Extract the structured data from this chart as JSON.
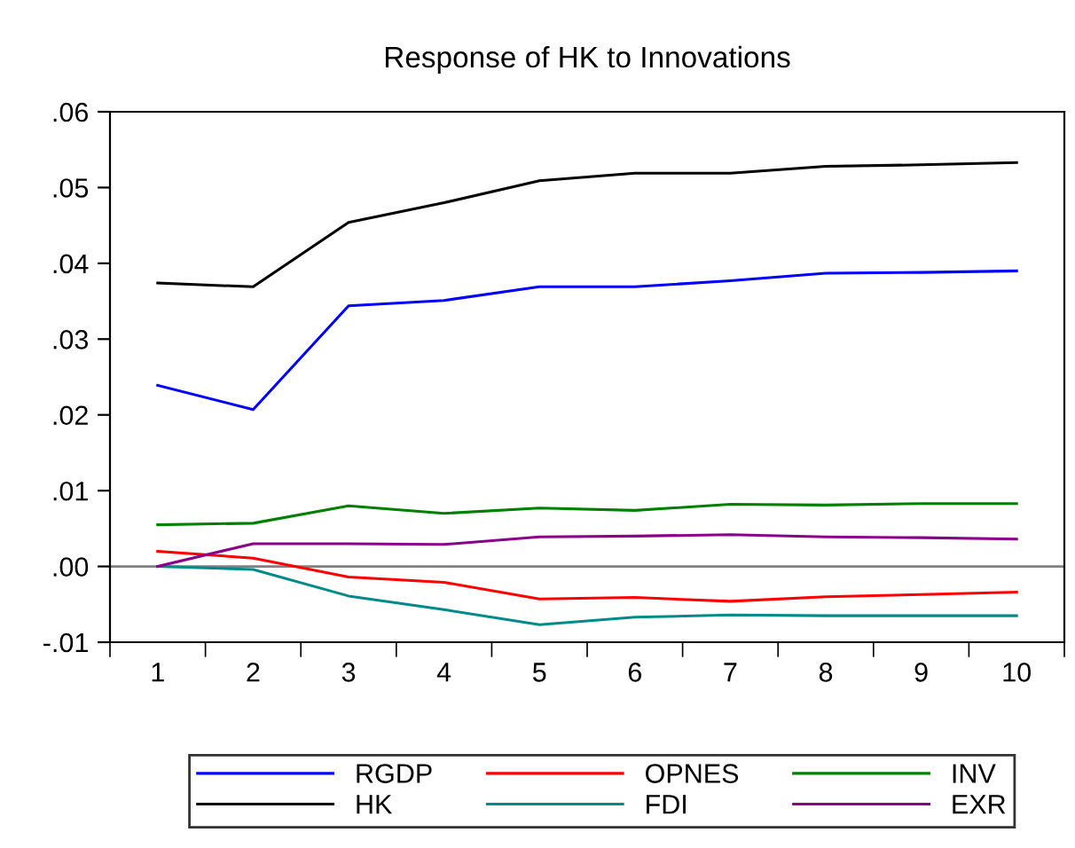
{
  "chart_data": {
    "type": "line",
    "title": "Response of HK to Innovations",
    "categories": [
      "1",
      "2",
      "3",
      "4",
      "5",
      "6",
      "7",
      "8",
      "9",
      "10"
    ],
    "series": [
      {
        "name": "RGDP",
        "color": "#0000ff",
        "values": [
          0.0239,
          0.0207,
          0.0344,
          0.0351,
          0.0369,
          0.0369,
          0.0377,
          0.0387,
          0.0388,
          0.039
        ]
      },
      {
        "name": "HK",
        "color": "#000000",
        "values": [
          0.0374,
          0.0369,
          0.0454,
          0.048,
          0.0509,
          0.0519,
          0.0519,
          0.0528,
          0.053,
          0.0533
        ]
      },
      {
        "name": "OPNES",
        "color": "#ff0000",
        "values": [
          0.002,
          0.0011,
          -0.0014,
          -0.0021,
          -0.0043,
          -0.0041,
          -0.0046,
          -0.004,
          -0.0037,
          -0.0034
        ]
      },
      {
        "name": "FDI",
        "color": "#008b8b",
        "values": [
          0.0,
          -0.0004,
          -0.0039,
          -0.0057,
          -0.0077,
          -0.0067,
          -0.0064,
          -0.0065,
          -0.0065,
          -0.0065
        ]
      },
      {
        "name": "INV",
        "color": "#008000",
        "values": [
          0.0055,
          0.0057,
          0.008,
          0.007,
          0.0077,
          0.0074,
          0.0082,
          0.0081,
          0.0083,
          0.0083
        ]
      },
      {
        "name": "EXR",
        "color": "#8b008b",
        "values": [
          0.0,
          0.003,
          0.003,
          0.0029,
          0.0039,
          0.004,
          0.0042,
          0.0039,
          0.0038,
          0.0036
        ]
      }
    ],
    "ylim": [
      -0.01,
      0.06
    ],
    "yticks": [
      {
        "value": -0.01,
        "label": "-.01"
      },
      {
        "value": 0.0,
        "label": ".00"
      },
      {
        "value": 0.01,
        "label": ".01"
      },
      {
        "value": 0.02,
        "label": ".02"
      },
      {
        "value": 0.03,
        "label": ".03"
      },
      {
        "value": 0.04,
        "label": ".04"
      },
      {
        "value": 0.05,
        "label": ".05"
      },
      {
        "value": 0.06,
        "label": ".06"
      }
    ],
    "ref_lines": [
      {
        "axis": "y",
        "value": 0.0,
        "color": "#808080"
      }
    ],
    "legend": "bottom",
    "grid": false,
    "marker": "none",
    "line_style": "solid"
  }
}
